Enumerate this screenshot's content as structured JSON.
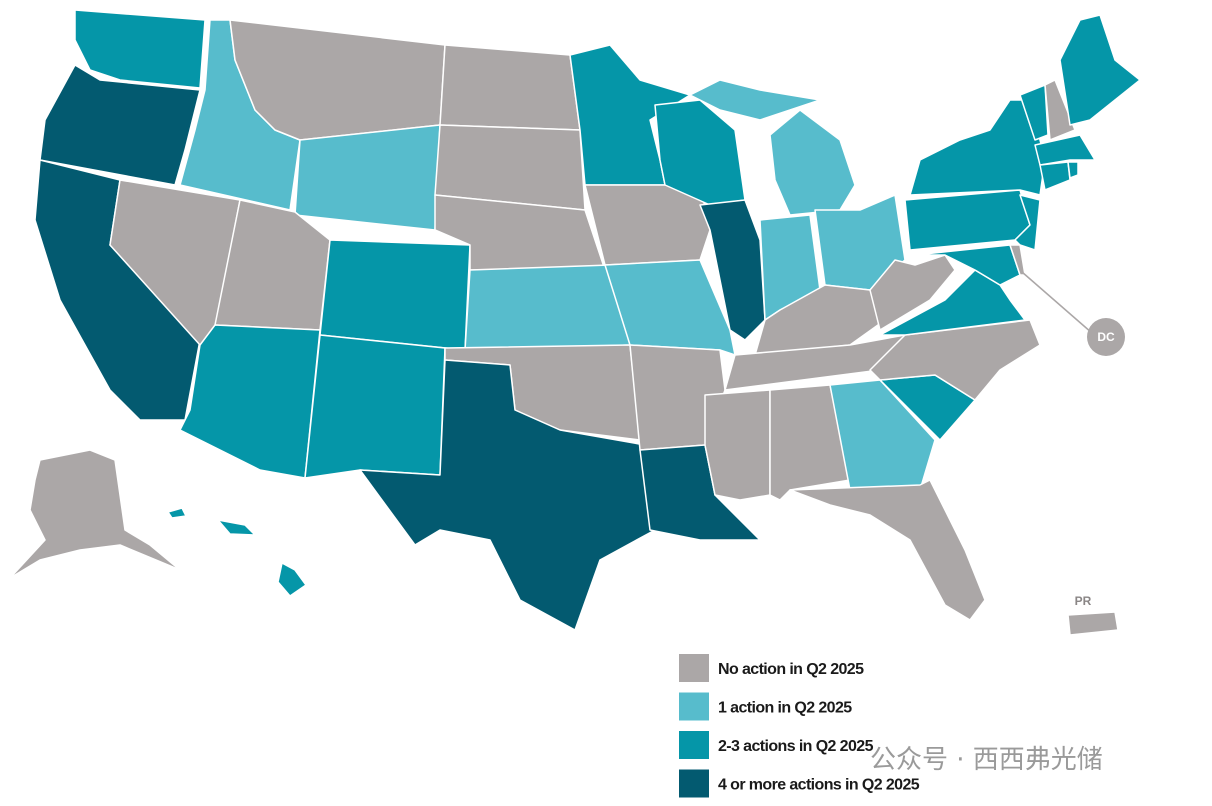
{
  "legend": {
    "items": [
      {
        "label": "No action in Q2 2025",
        "color": "#aba7a7"
      },
      {
        "label": "1 action in Q2 2025",
        "color": "#57bccc"
      },
      {
        "label": "2-3 actions in Q2 2025",
        "color": "#0596a8"
      },
      {
        "label": "4 or more actions in Q2 2025",
        "color": "#035a70"
      }
    ]
  },
  "callouts": {
    "dc": "DC",
    "pr": "PR"
  },
  "watermark": "公众号 · 西西弗光储"
}
